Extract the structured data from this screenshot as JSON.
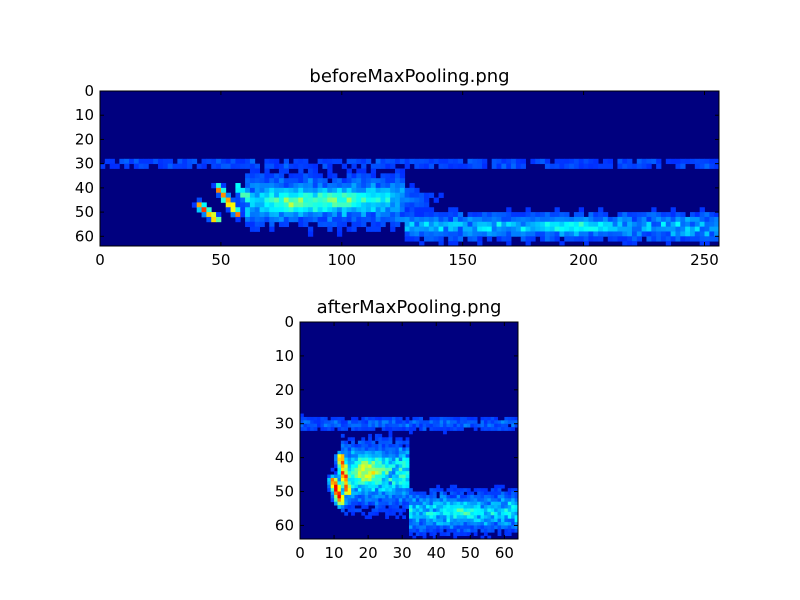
{
  "chart_data": [
    {
      "type": "heatmap",
      "title": "beforeMaxPooling.png",
      "xlim": [
        0,
        256
      ],
      "ylim": [
        64,
        0
      ],
      "x_ticks": [
        "0",
        "50",
        "100",
        "150",
        "200",
        "250"
      ],
      "y_ticks": [
        "0",
        "10",
        "20",
        "30",
        "40",
        "50",
        "60"
      ],
      "colormap": "jet",
      "background_color": "#00007f",
      "grid": false,
      "features": [
        {
          "kind": "diagonal",
          "x0": 41,
          "y0": 47,
          "x1": 48,
          "y1": 53,
          "peak": 0.85
        },
        {
          "kind": "diagonal",
          "x0": 49,
          "y0": 40,
          "x1": 57,
          "y1": 51,
          "peak": 0.8
        },
        {
          "kind": "diagonal",
          "x0": 57,
          "y0": 40,
          "x1": 62,
          "y1": 45,
          "peak": 0.45
        },
        {
          "kind": "blob",
          "x": 82,
          "y": 46,
          "w": 18,
          "h": 5,
          "peak": 0.45
        },
        {
          "kind": "blob",
          "x": 100,
          "y": 45,
          "w": 25,
          "h": 5,
          "peak": 0.4
        },
        {
          "kind": "band",
          "x0": 60,
          "x1": 126,
          "y": 45,
          "h": 9,
          "peak": 0.22
        },
        {
          "kind": "band",
          "x0": 126,
          "x1": 256,
          "y": 56,
          "h": 5,
          "peak": 0.2
        },
        {
          "kind": "blob",
          "x": 195,
          "y": 56,
          "w": 25,
          "h": 3,
          "peak": 0.32
        },
        {
          "kind": "band",
          "x0": 0,
          "x1": 256,
          "y": 30,
          "h": 2,
          "peak": 0.08
        }
      ]
    },
    {
      "type": "heatmap",
      "title": "afterMaxPooling.png",
      "xlim": [
        0,
        64
      ],
      "ylim": [
        64,
        0
      ],
      "x_ticks": [
        "0",
        "10",
        "20",
        "30",
        "40",
        "50",
        "60"
      ],
      "y_ticks": [
        "0",
        "10",
        "20",
        "30",
        "40",
        "50",
        "60"
      ],
      "colormap": "jet",
      "background_color": "#00007f",
      "grid": false,
      "features": [
        {
          "kind": "diagonal",
          "x0": 10,
          "y0": 47,
          "x1": 12,
          "y1": 53,
          "peak": 0.85
        },
        {
          "kind": "diagonal",
          "x0": 12,
          "y0": 40,
          "x1": 14,
          "y1": 50,
          "peak": 0.8
        },
        {
          "kind": "blob",
          "x": 20,
          "y": 44,
          "w": 6,
          "h": 5,
          "peak": 0.55
        },
        {
          "kind": "band",
          "x0": 12,
          "x1": 32,
          "y": 45,
          "h": 8,
          "peak": 0.28
        },
        {
          "kind": "band",
          "x0": 32,
          "x1": 64,
          "y": 56,
          "h": 5,
          "peak": 0.25
        },
        {
          "kind": "blob",
          "x": 47,
          "y": 56,
          "w": 8,
          "h": 3,
          "peak": 0.35
        },
        {
          "kind": "band",
          "x0": 0,
          "x1": 64,
          "y": 30,
          "h": 2,
          "peak": 0.1
        }
      ]
    }
  ]
}
